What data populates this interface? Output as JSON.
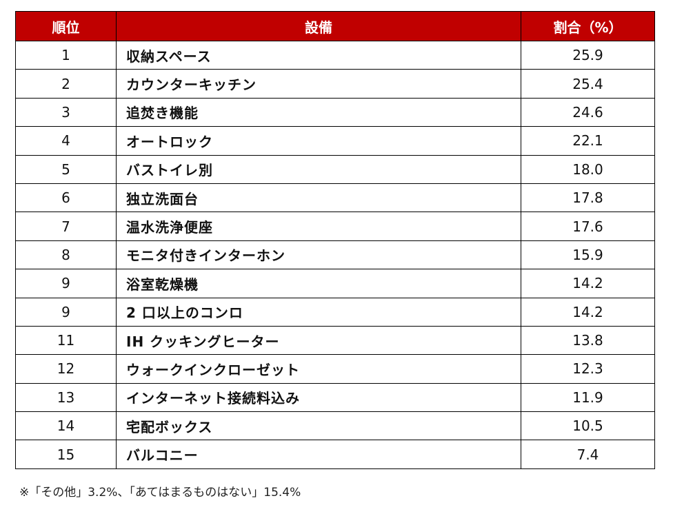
{
  "table": {
    "headers": {
      "rank": "順位",
      "item": "設備",
      "pct": "割合（%）"
    },
    "rows": [
      {
        "rank": "1",
        "item": "収納スペース",
        "pct": "25.9"
      },
      {
        "rank": "2",
        "item": "カウンターキッチン",
        "pct": "25.4"
      },
      {
        "rank": "3",
        "item": "追焚き機能",
        "pct": "24.6"
      },
      {
        "rank": "4",
        "item": "オートロック",
        "pct": "22.1"
      },
      {
        "rank": "5",
        "item": "バストイレ別",
        "pct": "18.0"
      },
      {
        "rank": "6",
        "item": "独立洗面台",
        "pct": "17.8"
      },
      {
        "rank": "7",
        "item": "温水洗浄便座",
        "pct": "17.6"
      },
      {
        "rank": "8",
        "item": "モニタ付きインターホン",
        "pct": "15.9"
      },
      {
        "rank": "9",
        "item": "浴室乾燥機",
        "pct": "14.2"
      },
      {
        "rank": "9",
        "item": "2 口以上のコンロ",
        "pct": "14.2"
      },
      {
        "rank": "11",
        "item": "IH クッキングヒーター",
        "pct": "13.8"
      },
      {
        "rank": "12",
        "item": "ウォークインクローゼット",
        "pct": "12.3"
      },
      {
        "rank": "13",
        "item": "インターネット接続料込み",
        "pct": "11.9"
      },
      {
        "rank": "14",
        "item": "宅配ボックス",
        "pct": "10.5"
      },
      {
        "rank": "15",
        "item": "バルコニー",
        "pct": "7.4"
      }
    ]
  },
  "footnote": "※「その他」3.2%、「あてはまるものはない」15.4%",
  "colors": {
    "header_bg": "#c00000",
    "header_text": "#ffffff",
    "border": "#000000"
  }
}
